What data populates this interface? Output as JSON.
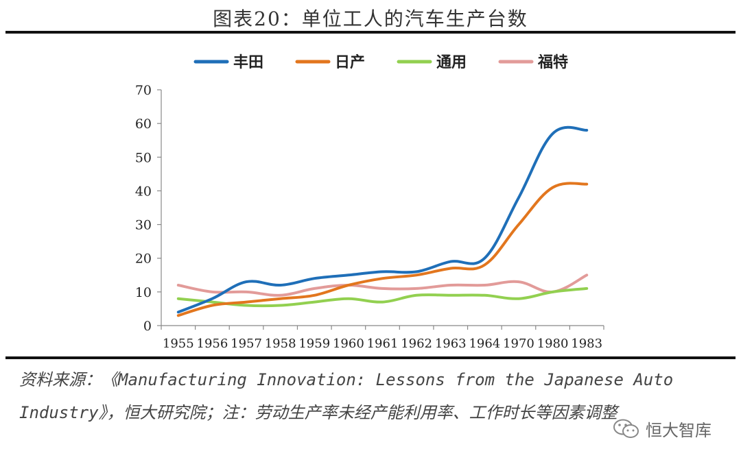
{
  "title": "图表20：单位工人的汽车生产台数",
  "source_note": "资料来源：《Manufacturing Innovation: Lessons from the Japanese Auto Industry》，恒大研究院；注：劳动生产率未经产能利用率、工作时长等因素调整",
  "watermark": {
    "text": "恒大智库",
    "icon": "wechat-icon"
  },
  "chart_data": {
    "type": "line",
    "categories": [
      "1955",
      "1956",
      "1957",
      "1958",
      "1959",
      "1960",
      "1961",
      "1962",
      "1963",
      "1964",
      "1970",
      "1980",
      "1983"
    ],
    "ylim": [
      0,
      70
    ],
    "yticks": [
      0,
      10,
      20,
      30,
      40,
      50,
      60,
      70
    ],
    "grid": false,
    "legend_position": "top",
    "series": [
      {
        "name": "丰田",
        "color": "#1f6fb8",
        "values": [
          4,
          8,
          13,
          12,
          14,
          15,
          16,
          16,
          19,
          20,
          38,
          57,
          58
        ]
      },
      {
        "name": "日产",
        "color": "#e2761e",
        "values": [
          3,
          6,
          7,
          8,
          9,
          12,
          14,
          15,
          17,
          18,
          30,
          41,
          42
        ]
      },
      {
        "name": "通用",
        "color": "#92d050",
        "values": [
          8,
          7,
          6,
          6,
          7,
          8,
          7,
          9,
          9,
          9,
          8,
          10,
          11
        ]
      },
      {
        "name": "福特",
        "color": "#e29b99",
        "values": [
          12,
          10,
          10,
          9,
          11,
          12,
          11,
          11,
          12,
          12,
          13,
          10,
          15
        ]
      }
    ]
  }
}
